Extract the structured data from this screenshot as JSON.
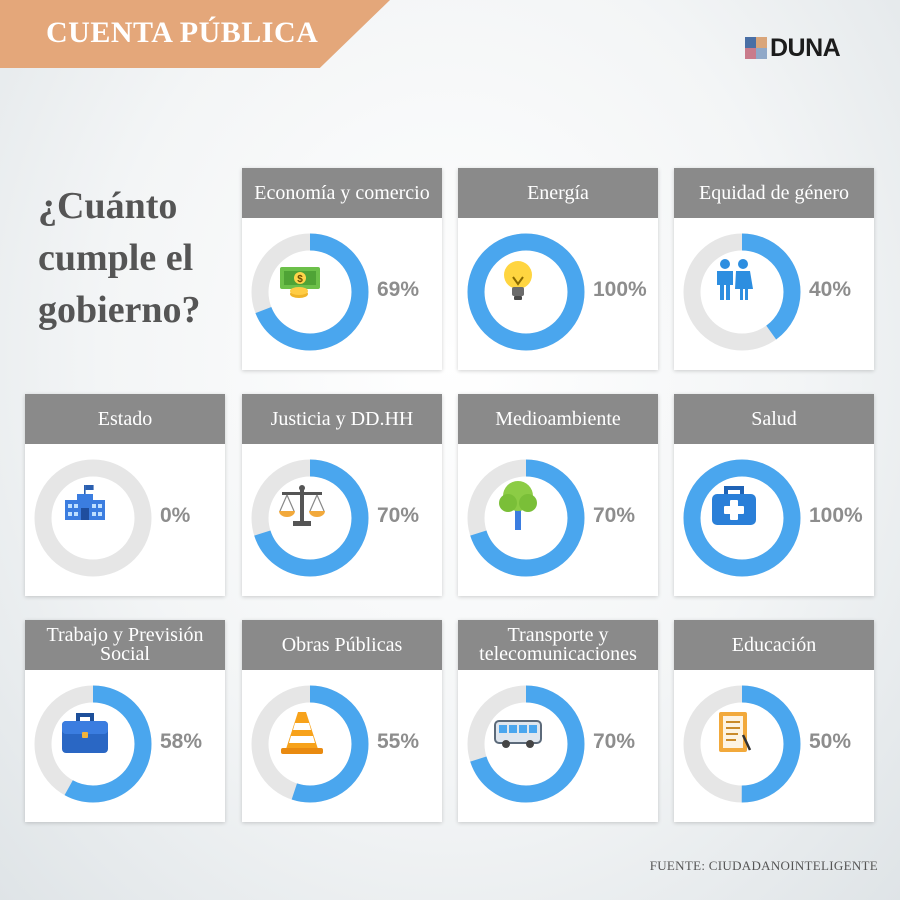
{
  "banner": {
    "title": "CUENTA PÚBLICA"
  },
  "logo": {
    "text": "DUNA"
  },
  "question": "¿Cuánto cumple el gobierno?",
  "footer": {
    "source": "FUENTE: CIUDADANOINTELIGENTE"
  },
  "colors": {
    "ring_fill": "#4aa6ee",
    "ring_track": "#e6e6e6",
    "header_bg": "#8a8a8a",
    "percent_text": "#8d8d8d",
    "banner_bg": "#e4a77a"
  },
  "chart_data": {
    "type": "pie",
    "title": "¿Cuánto cumple el gobierno?",
    "unit": "%",
    "categories": [
      "Economía y comercio",
      "Energía",
      "Equidad de género",
      "Estado",
      "Justicia y DD.HH",
      "Medioambiente",
      "Salud",
      "Trabajo y Previsión Social",
      "Obras Públicas",
      "Transporte y telecomunicaciones",
      "Educación"
    ],
    "values": [
      69,
      100,
      40,
      0,
      70,
      70,
      100,
      58,
      55,
      70,
      50
    ],
    "labels": [
      "69%",
      "100%",
      "40%",
      "0%",
      "70%",
      "70%",
      "100%",
      "58%",
      "55%",
      "70%",
      "50%"
    ],
    "icons": [
      "money-icon",
      "lightbulb-icon",
      "people-icon",
      "government-building-icon",
      "scales-icon",
      "tree-icon",
      "medical-kit-icon",
      "briefcase-icon",
      "traffic-cone-icon",
      "bus-icon",
      "document-icon"
    ]
  }
}
